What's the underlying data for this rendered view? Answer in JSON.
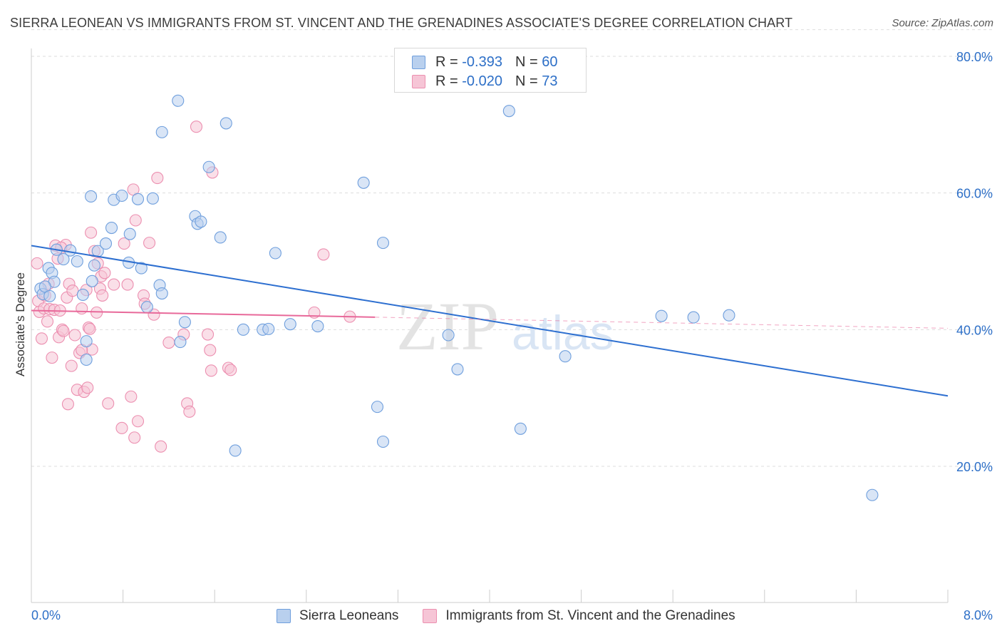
{
  "title": "SIERRA LEONEAN VS IMMIGRANTS FROM ST. VINCENT AND THE GRENADINES ASSOCIATE'S DEGREE CORRELATION CHART",
  "source": "Source: ZipAtlas.com",
  "watermark": {
    "zip": "ZIP",
    "atlas": "atlas"
  },
  "legend_top": {
    "rows": [
      {
        "r_label": "R = ",
        "r_value": "-0.393",
        "n_label": "N = ",
        "n_value": "60",
        "color": "#6f9fdd"
      },
      {
        "r_label": "R = ",
        "r_value": "-0.020",
        "n_label": "N = ",
        "n_value": "73",
        "color": "#ec8fb0"
      }
    ]
  },
  "colors": {
    "blue_fill": "#b9d0ee",
    "blue_stroke": "#6f9fdd",
    "blue_line": "#2d6fd0",
    "pink_fill": "#f6c5d6",
    "pink_stroke": "#ec8fb0",
    "pink_line": "#e8699a",
    "axis_label": "#2d6fc7",
    "grid": "#dddddd"
  },
  "chart_data": {
    "type": "scatter",
    "title": "SIERRA LEONEAN VS IMMIGRANTS FROM ST. VINCENT AND THE GRENADINES ASSOCIATE'S DEGREE CORRELATION CHART",
    "xlabel": "",
    "ylabel": "Associate's Degree",
    "xlim": [
      0,
      8
    ],
    "ylim": [
      0,
      84
    ],
    "x_tick_labels": [
      "0.0%",
      "8.0%"
    ],
    "y_ticks": [
      20,
      40,
      60,
      80
    ],
    "y_tick_labels": [
      "20.0%",
      "40.0%",
      "60.0%",
      "80.0%"
    ],
    "series": [
      {
        "name": "Sierra Leoneans",
        "color": "#6f9fdd",
        "trend": {
          "x": [
            0,
            8
          ],
          "y": [
            52.3,
            30.3
          ],
          "dashed_from": null
        },
        "points": [
          [
            0.08,
            46.0
          ],
          [
            0.15,
            49.0
          ],
          [
            0.18,
            48.3
          ],
          [
            0.2,
            47.0
          ],
          [
            0.22,
            51.7
          ],
          [
            0.28,
            50.3
          ],
          [
            0.34,
            51.6
          ],
          [
            0.4,
            50.0
          ],
          [
            0.45,
            45.1
          ],
          [
            0.48,
            38.3
          ],
          [
            0.48,
            35.6
          ],
          [
            0.52,
            59.5
          ],
          [
            0.53,
            47.1
          ],
          [
            0.55,
            49.4
          ],
          [
            0.58,
            51.5
          ],
          [
            0.65,
            52.6
          ],
          [
            0.7,
            54.9
          ],
          [
            0.72,
            59.0
          ],
          [
            0.79,
            59.6
          ],
          [
            0.85,
            49.8
          ],
          [
            0.86,
            54.0
          ],
          [
            0.93,
            59.1
          ],
          [
            0.96,
            49.0
          ],
          [
            1.01,
            43.3
          ],
          [
            1.06,
            59.2
          ],
          [
            1.12,
            46.5
          ],
          [
            1.14,
            68.9
          ],
          [
            1.14,
            45.3
          ],
          [
            1.28,
            73.5
          ],
          [
            1.3,
            38.2
          ],
          [
            1.34,
            41.1
          ],
          [
            1.43,
            56.6
          ],
          [
            1.45,
            55.5
          ],
          [
            1.48,
            55.8
          ],
          [
            1.55,
            63.8
          ],
          [
            1.65,
            53.5
          ],
          [
            1.7,
            70.2
          ],
          [
            1.78,
            22.3
          ],
          [
            1.85,
            40.0
          ],
          [
            2.02,
            40.0
          ],
          [
            2.07,
            40.1
          ],
          [
            2.13,
            51.2
          ],
          [
            2.26,
            40.8
          ],
          [
            2.5,
            40.5
          ],
          [
            2.9,
            61.5
          ],
          [
            3.02,
            28.7
          ],
          [
            3.07,
            23.6
          ],
          [
            3.07,
            52.7
          ],
          [
            3.64,
            39.2
          ],
          [
            3.72,
            34.2
          ],
          [
            4.17,
            72.0
          ],
          [
            4.27,
            25.5
          ],
          [
            4.66,
            36.1
          ],
          [
            5.5,
            42.0
          ],
          [
            5.78,
            41.8
          ],
          [
            6.09,
            42.1
          ],
          [
            7.34,
            15.8
          ],
          [
            0.1,
            45.2
          ],
          [
            0.12,
            46.3
          ],
          [
            0.16,
            44.9
          ]
        ]
      },
      {
        "name": "Immigrants from St. Vincent and the Grenadines",
        "color": "#ec8fb0",
        "trend": {
          "x": [
            0,
            8
          ],
          "y": [
            42.8,
            40.2
          ],
          "dashed_from": 3.0
        },
        "points": [
          [
            0.05,
            49.7
          ],
          [
            0.06,
            44.2
          ],
          [
            0.07,
            42.6
          ],
          [
            0.09,
            38.7
          ],
          [
            0.11,
            43.1
          ],
          [
            0.12,
            45.0
          ],
          [
            0.14,
            41.2
          ],
          [
            0.16,
            43.0
          ],
          [
            0.18,
            35.9
          ],
          [
            0.2,
            42.9
          ],
          [
            0.21,
            52.3
          ],
          [
            0.23,
            50.4
          ],
          [
            0.24,
            38.9
          ],
          [
            0.25,
            42.8
          ],
          [
            0.27,
            40.0
          ],
          [
            0.28,
            39.8
          ],
          [
            0.3,
            52.4
          ],
          [
            0.31,
            44.7
          ],
          [
            0.32,
            29.1
          ],
          [
            0.33,
            46.7
          ],
          [
            0.35,
            34.7
          ],
          [
            0.36,
            45.7
          ],
          [
            0.38,
            39.2
          ],
          [
            0.4,
            31.2
          ],
          [
            0.42,
            36.6
          ],
          [
            0.44,
            43.1
          ],
          [
            0.46,
            30.9
          ],
          [
            0.48,
            45.8
          ],
          [
            0.49,
            31.5
          ],
          [
            0.5,
            40.3
          ],
          [
            0.51,
            40.1
          ],
          [
            0.52,
            54.2
          ],
          [
            0.53,
            37.1
          ],
          [
            0.55,
            51.5
          ],
          [
            0.57,
            42.5
          ],
          [
            0.58,
            49.7
          ],
          [
            0.6,
            46.0
          ],
          [
            0.61,
            47.8
          ],
          [
            0.62,
            45.0
          ],
          [
            0.64,
            48.3
          ],
          [
            0.67,
            29.2
          ],
          [
            0.72,
            46.6
          ],
          [
            0.79,
            25.6
          ],
          [
            0.81,
            52.6
          ],
          [
            0.84,
            46.6
          ],
          [
            0.87,
            30.2
          ],
          [
            0.89,
            60.5
          ],
          [
            0.9,
            24.2
          ],
          [
            0.91,
            56.0
          ],
          [
            0.93,
            26.6
          ],
          [
            0.98,
            45.0
          ],
          [
            0.99,
            43.8
          ],
          [
            1.03,
            52.7
          ],
          [
            1.07,
            42.2
          ],
          [
            1.1,
            62.2
          ],
          [
            1.13,
            22.9
          ],
          [
            1.2,
            38.1
          ],
          [
            1.33,
            39.3
          ],
          [
            1.36,
            29.2
          ],
          [
            1.38,
            28.0
          ],
          [
            1.44,
            69.7
          ],
          [
            1.54,
            39.3
          ],
          [
            1.56,
            37.0
          ],
          [
            1.57,
            34.0
          ],
          [
            1.58,
            63.0
          ],
          [
            1.72,
            34.4
          ],
          [
            1.74,
            34.1
          ],
          [
            2.47,
            42.5
          ],
          [
            2.55,
            51.0
          ],
          [
            2.78,
            41.9
          ],
          [
            0.26,
            52.0
          ],
          [
            0.44,
            37.0
          ],
          [
            0.15,
            46.7
          ]
        ]
      }
    ]
  },
  "bottom_legend": {
    "items": [
      {
        "label": "Sierra Leoneans",
        "color": "#6f9fdd"
      },
      {
        "label": "Immigrants from St. Vincent and the Grenadines",
        "color": "#ec8fb0"
      }
    ]
  }
}
